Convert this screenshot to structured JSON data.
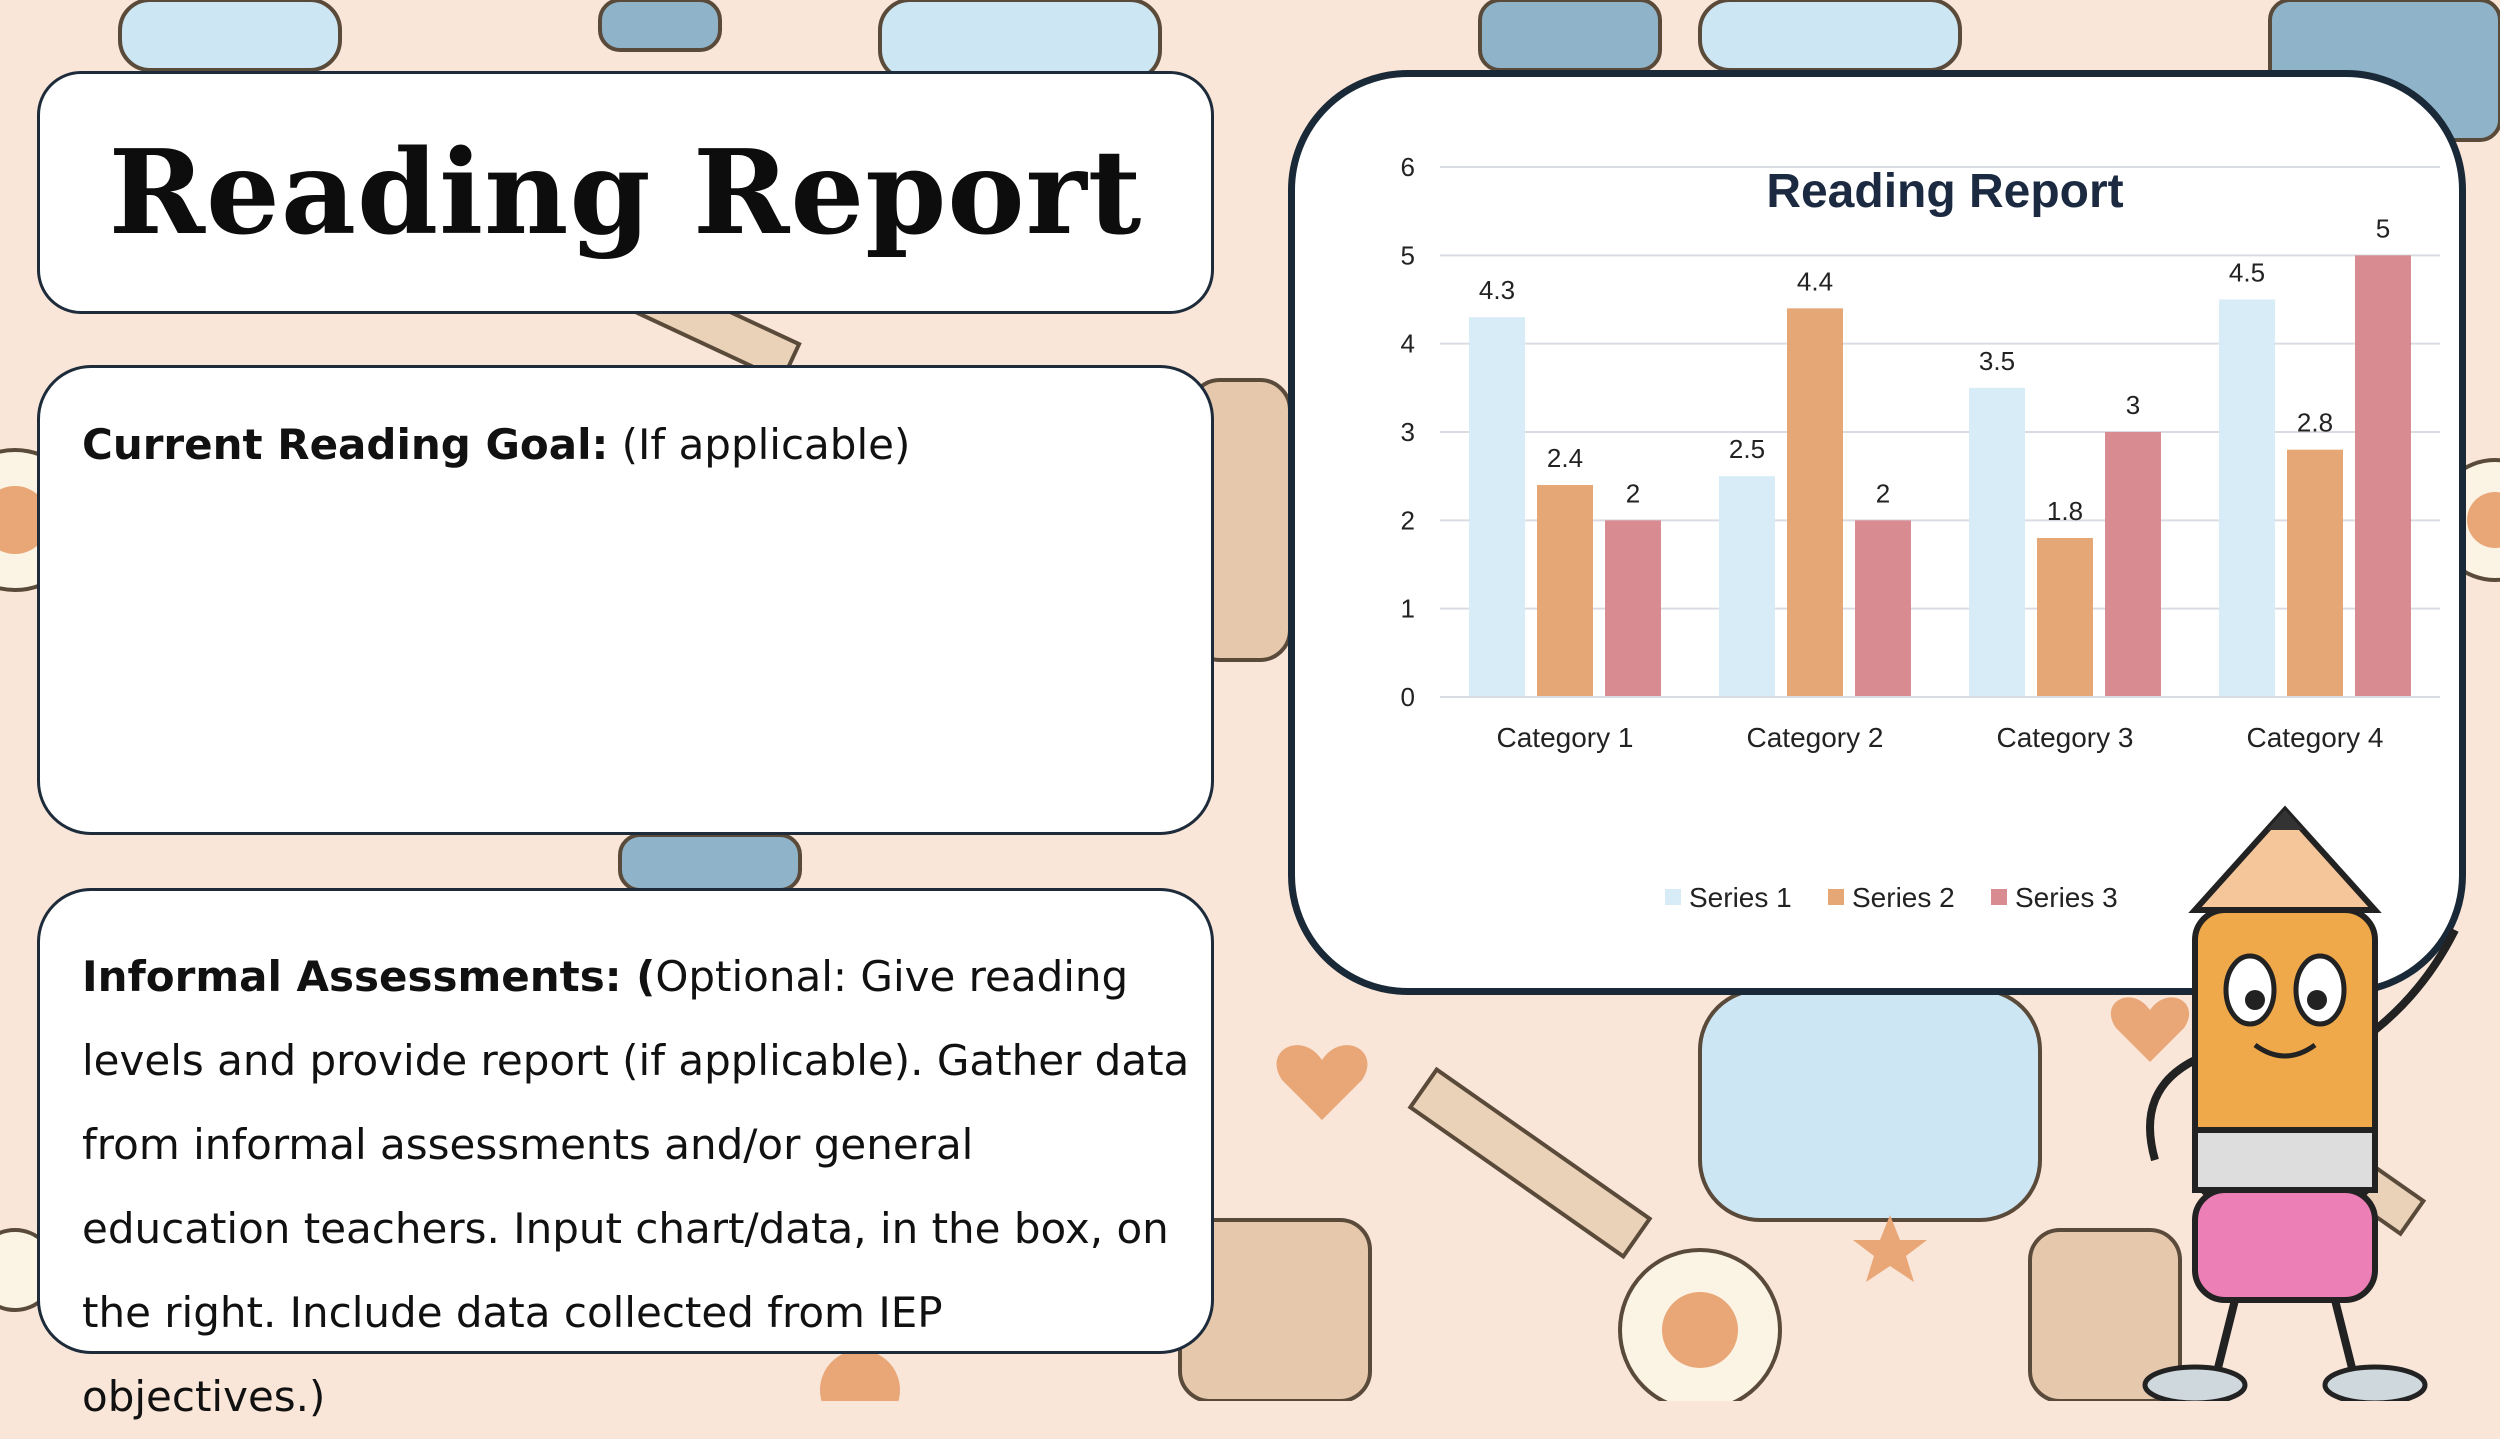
{
  "title": "Reading Report",
  "goal": {
    "label": "Current Reading Goal:",
    "note": " (If applicable)"
  },
  "assessments": {
    "label": "Informal Assessments: (",
    "body": "Optional: Give reading levels and provide report (if applicable). Gather data from informal assessments and/or general education teachers. Input chart/data, in the box, on the right. Include data collected from IEP objectives.)"
  },
  "colors": {
    "series1": "#d7ecf7",
    "series2": "#e5a776",
    "series3": "#d88b91",
    "gridline": "#d9dde3",
    "title": "#1b2a41"
  },
  "chart_data": {
    "type": "bar",
    "title": "Reading Report",
    "categories": [
      "Category 1",
      "Category 2",
      "Category 3",
      "Category 4"
    ],
    "series": [
      {
        "name": "Series 1",
        "values": [
          4.3,
          2.5,
          3.5,
          4.5
        ]
      },
      {
        "name": "Series 2",
        "values": [
          2.4,
          4.4,
          1.8,
          2.8
        ]
      },
      {
        "name": "Series 3",
        "values": [
          2,
          2,
          3,
          5
        ]
      }
    ],
    "ylim": [
      0,
      6
    ],
    "yticks": [
      "0",
      "1",
      "2",
      "3",
      "4",
      "5",
      "6"
    ],
    "data_labels": [
      [
        "4.3",
        "2.5",
        "3.5",
        "4.5"
      ],
      [
        "2.4",
        "4.4",
        "1.8",
        "2.8"
      ],
      [
        "2",
        "2",
        "3",
        "5"
      ]
    ],
    "xlabel": "",
    "ylabel": "",
    "grid": true,
    "legend": "bottom"
  }
}
